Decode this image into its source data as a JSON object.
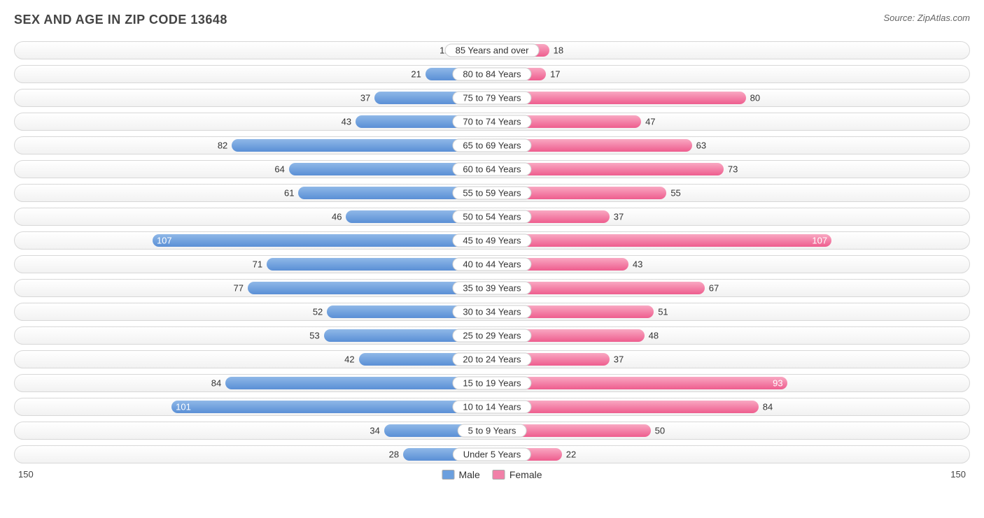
{
  "title": "SEX AND AGE IN ZIP CODE 13648",
  "source": "Source: ZipAtlas.com",
  "chart": {
    "type": "population-pyramid",
    "max_value": 150,
    "axis_left_label": "150",
    "axis_right_label": "150",
    "male_color_top": "#8fb8e8",
    "male_color_bottom": "#5a8fd6",
    "female_color_top": "#f9a8c2",
    "female_color_bottom": "#ee5d8e",
    "row_border_color": "#d8d8d8",
    "row_bg_top": "#ffffff",
    "row_bg_bottom": "#f2f2f2",
    "label_font_size": 13,
    "title_font_size": 18,
    "inside_label_threshold_pct": 62,
    "legend": [
      {
        "label": "Male",
        "color": "#6b9fde"
      },
      {
        "label": "Female",
        "color": "#f180a8"
      }
    ],
    "rows": [
      {
        "category": "85 Years and over",
        "male": 12,
        "female": 18
      },
      {
        "category": "80 to 84 Years",
        "male": 21,
        "female": 17
      },
      {
        "category": "75 to 79 Years",
        "male": 37,
        "female": 80
      },
      {
        "category": "70 to 74 Years",
        "male": 43,
        "female": 47
      },
      {
        "category": "65 to 69 Years",
        "male": 82,
        "female": 63
      },
      {
        "category": "60 to 64 Years",
        "male": 64,
        "female": 73
      },
      {
        "category": "55 to 59 Years",
        "male": 61,
        "female": 55
      },
      {
        "category": "50 to 54 Years",
        "male": 46,
        "female": 37
      },
      {
        "category": "45 to 49 Years",
        "male": 107,
        "female": 107
      },
      {
        "category": "40 to 44 Years",
        "male": 71,
        "female": 43
      },
      {
        "category": "35 to 39 Years",
        "male": 77,
        "female": 67
      },
      {
        "category": "30 to 34 Years",
        "male": 52,
        "female": 51
      },
      {
        "category": "25 to 29 Years",
        "male": 53,
        "female": 48
      },
      {
        "category": "20 to 24 Years",
        "male": 42,
        "female": 37
      },
      {
        "category": "15 to 19 Years",
        "male": 84,
        "female": 93
      },
      {
        "category": "10 to 14 Years",
        "male": 101,
        "female": 84
      },
      {
        "category": "5 to 9 Years",
        "male": 34,
        "female": 50
      },
      {
        "category": "Under 5 Years",
        "male": 28,
        "female": 22
      }
    ]
  }
}
